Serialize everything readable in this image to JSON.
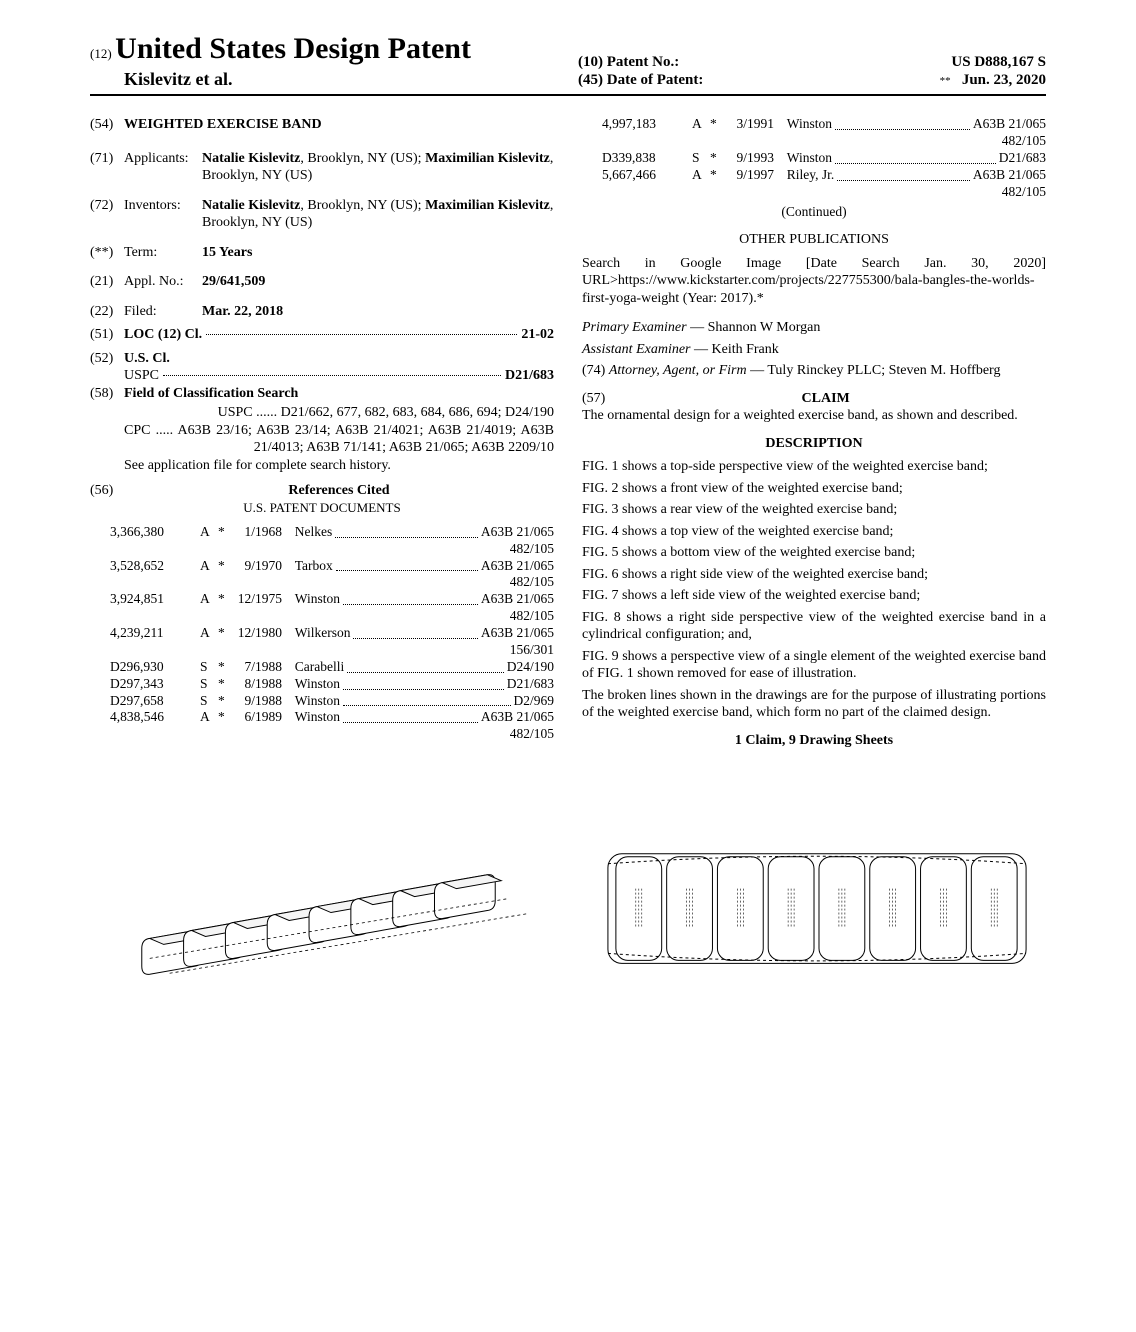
{
  "header": {
    "prefix12": "(12)",
    "title": "United States Design Patent",
    "authors": "Kislevitz et al.",
    "patentNoLabel": "(10) Patent No.:",
    "patentNo": "US D888,167 S",
    "dateLabel": "(45) Date of Patent:",
    "dateStar": "**",
    "date": "Jun. 23, 2020"
  },
  "left": {
    "f54": {
      "num": "(54)",
      "label": "",
      "val": "WEIGHTED EXERCISE BAND"
    },
    "f71": {
      "num": "(71)",
      "label": "Applicants:",
      "val": "Natalie Kislevitz, Brooklyn, NY (US); Maximilian Kislevitz, Brooklyn, NY (US)"
    },
    "f72": {
      "num": "(72)",
      "label": "Inventors:",
      "val": "Natalie Kislevitz, Brooklyn, NY (US); Maximilian Kislevitz, Brooklyn, NY (US)"
    },
    "fterm": {
      "num": "(**)",
      "label": "Term:",
      "val": "15 Years"
    },
    "f21": {
      "num": "(21)",
      "label": "Appl. No.:",
      "val": "29/641,509"
    },
    "f22": {
      "num": "(22)",
      "label": "Filed:",
      "val": "Mar. 22, 2018"
    },
    "f51": {
      "num": "(51)",
      "label": "LOC (12) Cl.",
      "val": "21-02"
    },
    "f52": {
      "num": "(52)",
      "label": "U.S. Cl.",
      "uspc_lbl": "USPC",
      "uspc": "D21/683"
    },
    "f58": {
      "num": "(58)",
      "label": "Field of Classification Search",
      "uspc": "USPC ...... D21/662, 677, 682, 683, 684, 686, 694; D24/190",
      "cpc": "CPC ..... A63B 23/16; A63B 23/14; A63B 21/4021; A63B 21/4019; A63B 21/4013; A63B 71/141; A63B 21/065; A63B 2209/10",
      "note": "See application file for complete search history."
    },
    "f56": {
      "num": "(56)",
      "label": "References Cited"
    },
    "refsSub": "U.S. PATENT DOCUMENTS",
    "cites": [
      {
        "id": "3,366,380",
        "k": "A",
        "s": "*",
        "d": "1/1968",
        "n": "Nelkes",
        "c": "A63B 21/065",
        "sub": "482/105"
      },
      {
        "id": "3,528,652",
        "k": "A",
        "s": "*",
        "d": "9/1970",
        "n": "Tarbox",
        "c": "A63B 21/065",
        "sub": "482/105"
      },
      {
        "id": "3,924,851",
        "k": "A",
        "s": "*",
        "d": "12/1975",
        "n": "Winston",
        "c": "A63B 21/065",
        "sub": "482/105"
      },
      {
        "id": "4,239,211",
        "k": "A",
        "s": "*",
        "d": "12/1980",
        "n": "Wilkerson",
        "c": "A63B 21/065",
        "sub": "156/301"
      },
      {
        "id": "D296,930",
        "k": "S",
        "s": "*",
        "d": "7/1988",
        "n": "Carabelli",
        "c": "D24/190",
        "sub": ""
      },
      {
        "id": "D297,343",
        "k": "S",
        "s": "*",
        "d": "8/1988",
        "n": "Winston",
        "c": "D21/683",
        "sub": ""
      },
      {
        "id": "D297,658",
        "k": "S",
        "s": "*",
        "d": "9/1988",
        "n": "Winston",
        "c": "D2/969",
        "sub": ""
      },
      {
        "id": "4,838,546",
        "k": "A",
        "s": "*",
        "d": "6/1989",
        "n": "Winston",
        "c": "A63B 21/065",
        "sub": "482/105"
      }
    ]
  },
  "right": {
    "citesTop": [
      {
        "id": "4,997,183",
        "k": "A",
        "s": "*",
        "d": "3/1991",
        "n": "Winston",
        "c": "A63B 21/065",
        "sub": "482/105"
      },
      {
        "id": "D339,838",
        "k": "S",
        "s": "*",
        "d": "9/1993",
        "n": "Winston",
        "c": "D21/683",
        "sub": ""
      },
      {
        "id": "5,667,466",
        "k": "A",
        "s": "*",
        "d": "9/1997",
        "n": "Riley, Jr.",
        "c": "A63B 21/065",
        "sub": "482/105"
      }
    ],
    "continued": "(Continued)",
    "otherPubH": "OTHER PUBLICATIONS",
    "otherPub": "Search in Google Image [Date Search Jan. 30, 2020] URL>https://www.kickstarter.com/projects/227755300/bala-bangles-the-worlds-first-yoga-weight (Year: 2017).*",
    "primary": "Primary Examiner — Shannon W Morgan",
    "assistant": "Assistant Examiner — Keith Frank",
    "attorney": "(74) Attorney, Agent, or Firm — Tuly Rinckey PLLC; Steven M. Hoffberg",
    "claimNum": "(57)",
    "claimH": "CLAIM",
    "claimText": "The ornamental design for a weighted exercise band, as shown and described.",
    "descH": "DESCRIPTION",
    "desc": [
      "FIG. 1 shows a top-side perspective view of the weighted exercise band;",
      "FIG. 2 shows a front view of the weighted exercise band;",
      "FIG. 3 shows a rear view of the weighted exercise band;",
      "FIG. 4 shows a top view of the weighted exercise band;",
      "FIG. 5 shows a bottom view of the weighted exercise band;",
      "FIG. 6 shows a right side view of the weighted exercise band;",
      "FIG. 7 shows a left side view of the weighted exercise band;",
      "FIG. 8 shows a right side perspective view of the weighted exercise band in a cylindrical configuration; and,",
      "FIG. 9 shows a perspective view of a single element of the weighted exercise band of FIG. 1 shown removed for ease of illustration.",
      "The broken lines shown in the drawings are for the purpose of illustrating portions of the weighted exercise band, which form no part of the claimed design."
    ],
    "foot": "1 Claim, 9 Drawing Sheets"
  }
}
